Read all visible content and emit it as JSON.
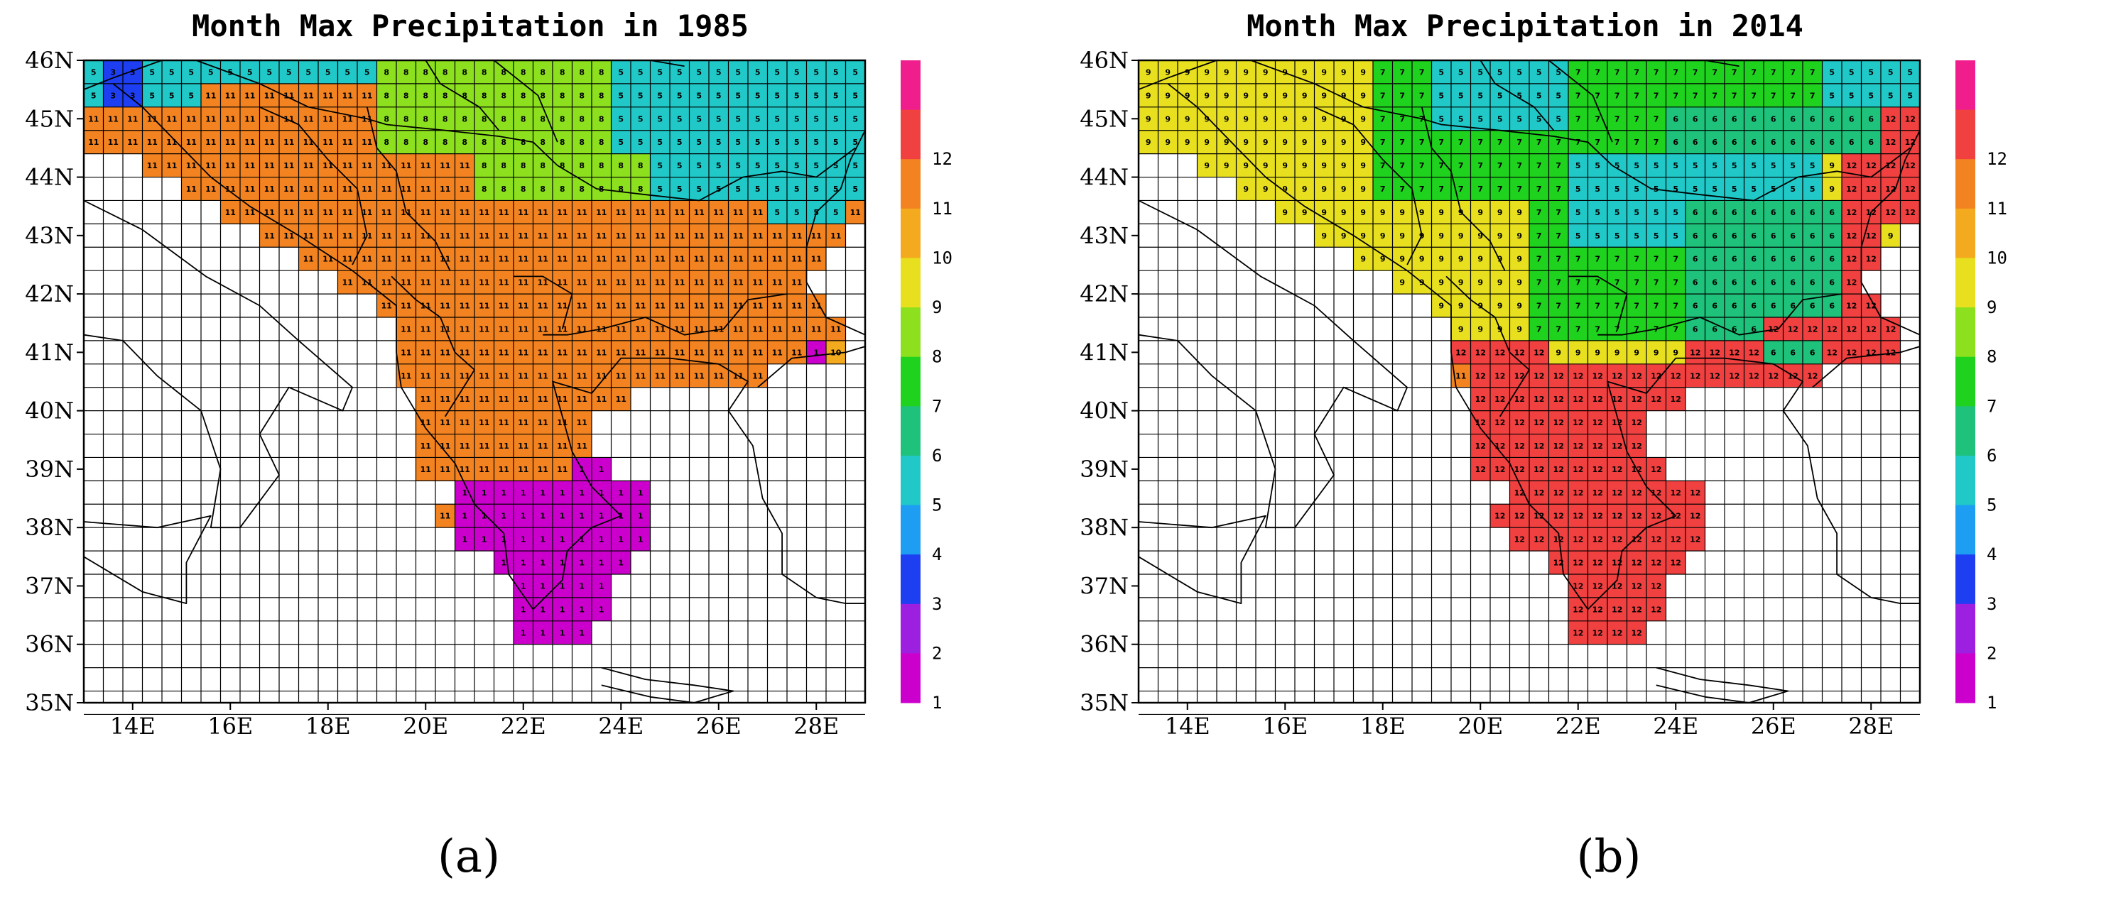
{
  "panels": [
    {
      "id": "a",
      "title": "Month Max Precipitation in 1985",
      "label": "(a)",
      "mid_lat": 40.8,
      "east_default": 11,
      "east_zones": [
        {
          "lat_min": 38.9,
          "lat_max": 39.2,
          "lon_min": 23.0,
          "lon_max": 23.6,
          "month": 1
        },
        {
          "lat_min": 37.3,
          "lat_max": 38.9,
          "lon_min": 20.6,
          "lon_max": 24.6,
          "month": 1
        },
        {
          "lat_min": 35.8,
          "lat_max": 37.3,
          "lon_min": 21.6,
          "lon_max": 23.6,
          "month": 1
        }
      ],
      "west_default": 11,
      "north_zones": [
        {
          "lat_min": 45.2,
          "lat_max": 45.8,
          "lon_min": 13.3,
          "lon_max": 14.2,
          "month": 3
        },
        {
          "lat_min": 45.2,
          "lat_max": 46.0,
          "lon_min": 13.0,
          "lon_max": 13.6,
          "month": 5
        },
        {
          "lat_min": 45.8,
          "lat_max": 46.0,
          "lon_min": 13.0,
          "lon_max": 15.2,
          "month": 5
        },
        {
          "lat_min": 45.2,
          "lat_max": 45.8,
          "lon_min": 14.2,
          "lon_max": 15.2,
          "month": 5
        },
        {
          "lat_min": 44.4,
          "lat_max": 46.0,
          "lon_min": 19.2,
          "lon_max": 20.6,
          "month": 8
        },
        {
          "lat_min": 44.4,
          "lat_max": 46.0,
          "lon_min": 20.6,
          "lon_max": 21.6,
          "month": 8
        },
        {
          "lat_min": 43.6,
          "lat_max": 44.4,
          "lon_min": 21.0,
          "lon_max": 24.6,
          "month": 8
        },
        {
          "lat_min": 44.4,
          "lat_max": 46.0,
          "lon_min": 21.6,
          "lon_max": 23.6,
          "month": 8
        },
        {
          "lat_min": 45.8,
          "lat_max": 46.0,
          "lon_min": 15.2,
          "lon_max": 29.0,
          "month": 5
        },
        {
          "lat_min": 44.4,
          "lat_max": 45.8,
          "lon_min": 23.6,
          "lon_max": 29.0,
          "month": 5
        },
        {
          "lat_min": 43.6,
          "lat_max": 44.4,
          "lon_min": 24.6,
          "lon_max": 29.0,
          "month": 5
        },
        {
          "lat_min": 43.2,
          "lat_max": 43.6,
          "lon_min": 27.0,
          "lon_max": 28.6,
          "month": 5
        },
        {
          "lat_min": 40.8,
          "lat_max": 41.2,
          "lon_min": 27.8,
          "lon_max": 28.2,
          "month": 1
        },
        {
          "lat_min": 40.8,
          "lat_max": 41.2,
          "lon_min": 28.2,
          "lon_max": 28.6,
          "month": 10
        }
      ]
    },
    {
      "id": "b",
      "title": "Month Max Precipitation in 2014",
      "label": "(b)",
      "mid_lat": 40.8,
      "east_default": 12,
      "east_zones": [],
      "west_default": 9,
      "north_zones": [
        {
          "lat_min": 44.8,
          "lat_max": 46.0,
          "lon_min": 19.2,
          "lon_max": 21.6,
          "month": 5
        },
        {
          "lat_min": 43.0,
          "lat_max": 44.4,
          "lon_min": 21.6,
          "lon_max": 24.0,
          "month": 5
        },
        {
          "lat_min": 43.6,
          "lat_max": 44.4,
          "lon_min": 24.0,
          "lon_max": 27.0,
          "month": 5
        },
        {
          "lat_min": 45.4,
          "lat_max": 46.0,
          "lon_min": 27.0,
          "lon_max": 29.0,
          "month": 5
        },
        {
          "lat_min": 44.4,
          "lat_max": 45.8,
          "lon_min": 17.6,
          "lon_max": 19.2,
          "month": 7
        },
        {
          "lat_min": 43.6,
          "lat_max": 44.8,
          "lon_min": 18.0,
          "lon_max": 21.6,
          "month": 7
        },
        {
          "lat_min": 45.4,
          "lat_max": 46.0,
          "lon_min": 21.6,
          "lon_max": 27.0,
          "month": 7
        },
        {
          "lat_min": 44.4,
          "lat_max": 45.4,
          "lon_min": 21.6,
          "lon_max": 23.6,
          "month": 7
        },
        {
          "lat_min": 41.2,
          "lat_max": 43.6,
          "lon_min": 21.2,
          "lon_max": 24.4,
          "month": 7
        },
        {
          "lat_min": 44.4,
          "lat_max": 45.4,
          "lon_min": 23.6,
          "lon_max": 28.2,
          "month": 6
        },
        {
          "lat_min": 41.6,
          "lat_max": 43.6,
          "lon_min": 24.4,
          "lon_max": 27.4,
          "month": 6
        },
        {
          "lat_min": 40.8,
          "lat_max": 41.2,
          "lon_min": 26.0,
          "lon_max": 27.0,
          "month": 6
        },
        {
          "lat_min": 41.2,
          "lat_max": 41.6,
          "lon_min": 24.4,
          "lon_max": 25.6,
          "month": 6
        },
        {
          "lat_min": 43.2,
          "lat_max": 45.0,
          "lon_min": 27.4,
          "lon_max": 29.0,
          "month": 12
        },
        {
          "lat_min": 41.6,
          "lat_max": 43.2,
          "lon_min": 27.4,
          "lon_max": 28.2,
          "month": 12
        },
        {
          "lat_min": 40.8,
          "lat_max": 41.6,
          "lon_min": 24.4,
          "lon_max": 28.6,
          "month": 12
        },
        {
          "lat_min": 40.8,
          "lat_max": 41.2,
          "lon_min": 19.2,
          "lon_max": 21.2,
          "month": 12
        },
        {
          "lat_min": 40.4,
          "lat_max": 40.8,
          "lon_min": 19.2,
          "lon_max": 19.6,
          "month": 11
        }
      ]
    }
  ],
  "months_legend": [
    "1",
    "2",
    "3",
    "4",
    "5",
    "6",
    "7",
    "8",
    "9",
    "10",
    "11",
    "12"
  ],
  "month_colors": {
    "1": "#cc00cc",
    "2": "#9d1fe0",
    "3": "#1e3ef2",
    "4": "#1e9ef2",
    "5": "#20c8c8",
    "6": "#1ec27a",
    "7": "#1ed21e",
    "8": "#8ce01e",
    "9": "#e8e01e",
    "10": "#f3aa1e",
    "11": "#f38320",
    "12": "#f04040",
    "over": "#f01e8c"
  },
  "lat_ticks": [
    "46N",
    "45N",
    "44N",
    "43N",
    "42N",
    "41N",
    "40N",
    "39N",
    "38N",
    "37N",
    "36N",
    "35N"
  ],
  "lon_ticks": [
    "14E",
    "16E",
    "18E",
    "20E",
    "22E",
    "24E",
    "26E",
    "28E"
  ],
  "grid": {
    "lon_start": 13.0,
    "lon_end": 29.0,
    "lat_start": 35.0,
    "lat_end": 46.0,
    "lon_step": 0.4,
    "lat_step": 0.4
  },
  "domain_mask_note": "filled cells represent the Balkan peninsula land domain",
  "domain": [
    [
      46.0,
      13.0,
      29.0
    ],
    [
      45.6,
      13.0,
      29.0
    ],
    [
      45.2,
      13.0,
      29.0
    ],
    [
      44.8,
      13.0,
      29.0
    ],
    [
      44.4,
      14.0,
      29.0
    ],
    [
      44.0,
      14.8,
      29.0
    ],
    [
      43.6,
      15.6,
      28.8
    ],
    [
      43.2,
      16.4,
      28.6
    ],
    [
      42.8,
      17.4,
      28.2
    ],
    [
      42.4,
      18.2,
      27.8
    ],
    [
      42.0,
      19.0,
      28.0
    ],
    [
      41.6,
      19.2,
      28.6
    ],
    [
      41.2,
      19.2,
      28.6
    ],
    [
      40.8,
      19.2,
      27.0
    ],
    [
      40.4,
      19.6,
      24.0
    ],
    [
      40.0,
      19.6,
      23.4
    ],
    [
      39.6,
      19.6,
      23.4
    ],
    [
      39.2,
      19.6,
      23.6
    ],
    [
      38.8,
      20.4,
      24.6
    ],
    [
      38.4,
      20.2,
      24.6
    ],
    [
      38.0,
      20.6,
      24.6
    ],
    [
      37.6,
      21.4,
      24.0
    ],
    [
      37.2,
      21.6,
      23.6
    ],
    [
      36.8,
      21.6,
      23.6
    ],
    [
      36.4,
      21.6,
      23.2
    ]
  ]
}
